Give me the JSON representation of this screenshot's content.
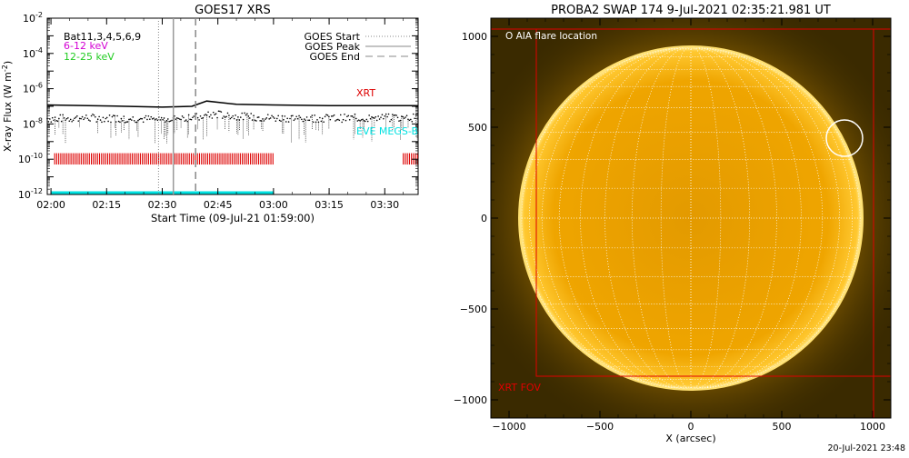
{
  "footer_timestamp": "20-Jul-2021 23:48",
  "chart_data": [
    {
      "type": "line",
      "title": "GOES17 XRS",
      "xlabel": "Start Time (09-Jul-21 01:59:00)",
      "ylabel_main": "X-ray Flux (W m",
      "ylabel_sup": "-2",
      "ylabel_close": ")",
      "y_scale": "log",
      "ylim": [
        1e-12,
        0.01
      ],
      "xlim": [
        "01:59",
        "03:39"
      ],
      "x_ticks": [
        "02:00",
        "02:15",
        "02:30",
        "02:45",
        "03:00",
        "03:15",
        "03:30"
      ],
      "y_ticks": [
        {
          "base": "10",
          "exp": "-12",
          "value": 1e-12
        },
        {
          "base": "10",
          "exp": "-10",
          "value": 1e-10
        },
        {
          "base": "10",
          "exp": "-8",
          "value": 1e-08
        },
        {
          "base": "10",
          "exp": "-6",
          "value": 1e-06
        },
        {
          "base": "10",
          "exp": "-4",
          "value": 0.0001
        },
        {
          "base": "10",
          "exp": "-2",
          "value": 0.01
        }
      ],
      "annotations": {
        "filters": "Bat11,3,4,5,6,9",
        "channel_low": "6-12 keV",
        "channel_high": "12-25 keV",
        "xrt_label": "XRT",
        "eve_label": "EVE MEGS-B"
      },
      "colors": {
        "channel_low": "#d400d4",
        "channel_high": "#22cc22",
        "xrt": "#dd0000",
        "eve": "#00e0e0"
      },
      "legend": {
        "placement": "top-right",
        "entries": [
          {
            "name": "GOES Start",
            "style": "dotted"
          },
          {
            "name": "GOES Peak",
            "style": "solid"
          },
          {
            "name": "GOES End",
            "style": "dashed"
          }
        ]
      },
      "event_times": {
        "start": "02:29",
        "peak": "02:33",
        "end": "02:39"
      },
      "series": [
        {
          "name": "long_channel",
          "x": [
            "01:59",
            "02:10",
            "02:20",
            "02:30",
            "02:38",
            "02:42",
            "02:46",
            "02:50",
            "03:00",
            "03:15",
            "03:30",
            "03:39"
          ],
          "y": [
            1.2e-07,
            1.1e-07,
            1e-07,
            9e-08,
            1e-07,
            2e-07,
            1.6e-07,
            1.3e-07,
            1.2e-07,
            1.1e-07,
            1.1e-07,
            1.1e-07
          ]
        },
        {
          "name": "short_channel",
          "x": [
            "01:59",
            "02:10",
            "02:20",
            "02:30",
            "02:40",
            "02:45",
            "02:50",
            "03:00",
            "03:15",
            "03:30",
            "03:39"
          ],
          "y": [
            2e-08,
            2.2e-08,
            2e-08,
            1.8e-08,
            2.5e-08,
            3.5e-08,
            2.6e-08,
            2.2e-08,
            2.1e-08,
            2.2e-08,
            2.3e-08
          ]
        }
      ],
      "xrt_coverage": [
        {
          "start": "02:01",
          "end": "03:00"
        },
        {
          "start": "03:35",
          "end": "03:39"
        }
      ],
      "eve_coverage": {
        "start": "02:00",
        "end": "03:00",
        "level": 1e-12
      }
    },
    {
      "type": "image",
      "title": "PROBA2 SWAP 174  9-Jul-2021 02:35:21.981 UT",
      "xlabel": "X (arcsec)",
      "xlim": [
        -1100,
        1100
      ],
      "ylim": [
        -1100,
        1100
      ],
      "x_ticks": [
        -1000,
        -500,
        0,
        500,
        1000
      ],
      "y_ticks": [
        -1000,
        -500,
        0,
        500,
        1000
      ],
      "x_tick_labels": [
        "−1000",
        "−500",
        "0",
        "500",
        "1000"
      ],
      "y_tick_labels": [
        "−1000",
        "−500",
        "0",
        "500",
        "1000"
      ],
      "solar_radius_arcsec": 945,
      "flare_location": {
        "x": 845,
        "y": 440,
        "label": "O AIA flare location"
      },
      "flare_circle_radius_arcsec": 100,
      "xrt_fov": {
        "x0": -850,
        "x1": 1100,
        "y0": -870,
        "y1": 1040,
        "label": "XRT FOV"
      },
      "outer_box": {
        "x0": -1100,
        "x1": 1005,
        "y0": -1100,
        "y1": 1040
      },
      "grid_spacing_deg": 10,
      "colors": {
        "disk": "#f0a800",
        "limb": "#ffd040",
        "fov": "#e00000",
        "grid": "#ffffff",
        "background": "#3a2a00"
      }
    }
  ]
}
